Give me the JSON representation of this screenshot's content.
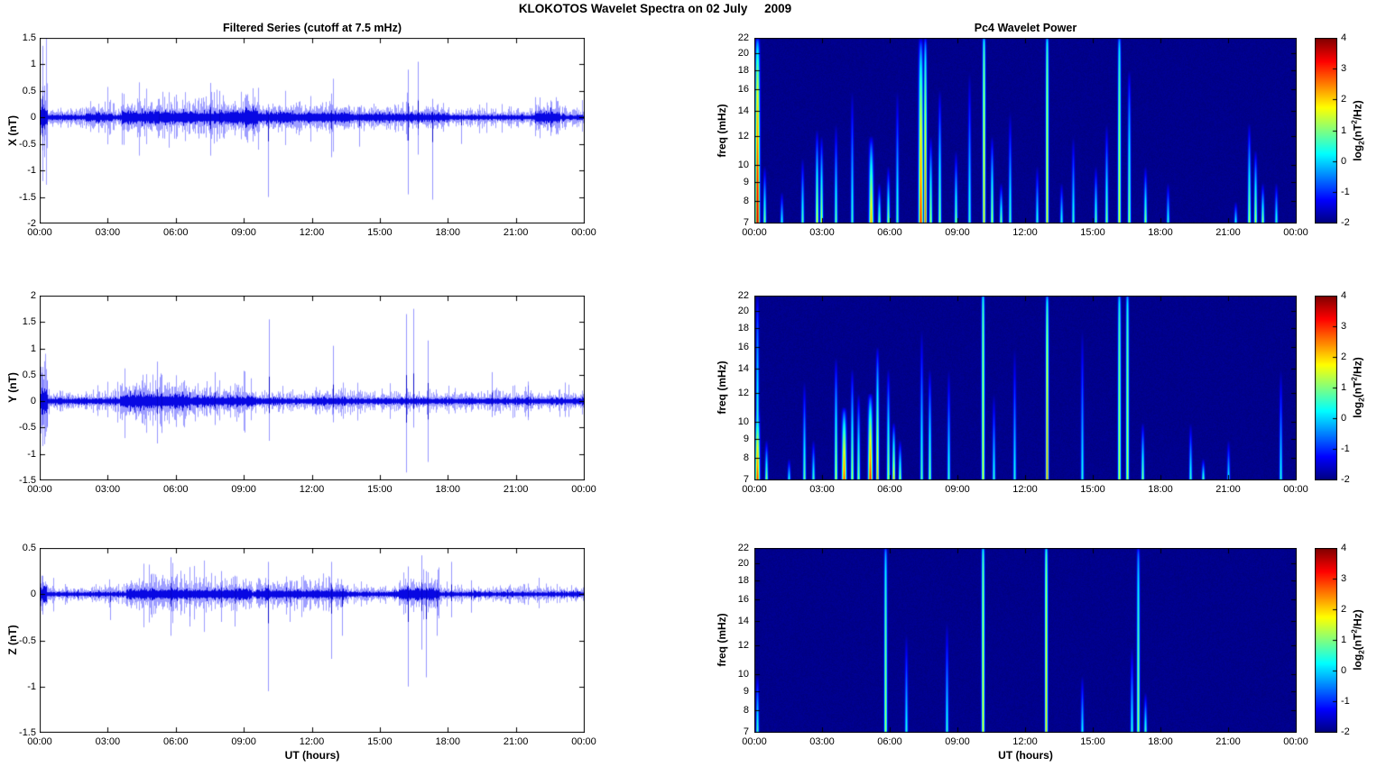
{
  "figure_title": "KLOKOTOS Wavelet Spectra on 02 July     2009",
  "left_column_title": "Filtered Series (cutoff at 7.5 mHz)",
  "right_column_title": "Pc4 Wavelet Power",
  "xlabel": "UT (hours)",
  "time_axis": {
    "tick_labels": [
      "00:00",
      "03:00",
      "06:00",
      "09:00",
      "12:00",
      "15:00",
      "18:00",
      "21:00",
      "00:00"
    ],
    "tick_hours": [
      0,
      3,
      6,
      9,
      12,
      15,
      18,
      21,
      24
    ],
    "range_hours": [
      0,
      24
    ]
  },
  "colorbar": {
    "tick_labels": [
      "4",
      "3",
      "2",
      "1",
      "0",
      "-1",
      "-2"
    ],
    "tick_values": [
      4,
      3,
      2,
      1,
      0,
      -1,
      -2
    ],
    "range": [
      -2,
      4
    ],
    "label_pre": "log",
    "label_sub": "2",
    "label_mid": "(nT",
    "label_sup": "2",
    "label_post": "/Hz)",
    "colormap": "jet",
    "top_color": "#800000",
    "bottom_color": "#000080"
  },
  "chart_data": [
    {
      "type": "line",
      "name": "X filtered series",
      "ylabel": "X (nT)",
      "line_color": "#0000EE",
      "ylim": [
        -2,
        1.5
      ],
      "ytick_values": [
        1.5,
        1,
        0.5,
        0,
        -0.5,
        -1,
        -1.5,
        -2
      ],
      "ytick_labels": [
        "1.5",
        "1",
        "0.5",
        "0",
        "-0.5",
        "-1",
        "-1.5",
        "-2"
      ],
      "noise_sigma": 0.035,
      "seed": 101,
      "bursts_format": "[t0_h, t1_h, extra_sigma]",
      "bursts": [
        [
          0,
          0.35,
          0.1
        ],
        [
          2.0,
          3.2,
          0.02
        ],
        [
          3.6,
          9.6,
          0.045
        ],
        [
          9.0,
          13.6,
          0.033
        ],
        [
          13.6,
          18.0,
          0.02
        ],
        [
          21.8,
          22.9,
          0.045
        ]
      ],
      "spikes_format": "[t_h, up_nT, down_nT]",
      "spikes": [
        [
          0.12,
          1.35,
          -1.2
        ],
        [
          0.18,
          0.6,
          -0.75
        ],
        [
          5.25,
          0.35,
          -0.35
        ],
        [
          7.5,
          0.65,
          -0.72
        ],
        [
          7.9,
          0.5,
          -0.4
        ],
        [
          10.05,
          0.25,
          -1.5
        ],
        [
          12.85,
          0.45,
          -0.75
        ],
        [
          14.05,
          0.2,
          -0.55
        ],
        [
          16.2,
          0.9,
          -1.45
        ],
        [
          16.65,
          1.05,
          -0.7
        ],
        [
          17.3,
          0.35,
          -1.55
        ],
        [
          18.55,
          0.15,
          -0.5
        ],
        [
          23.0,
          0.2,
          -0.2
        ]
      ]
    },
    {
      "type": "line",
      "name": "Y filtered series",
      "ylabel": "Y (nT)",
      "line_color": "#0000EE",
      "ylim": [
        -1.5,
        2
      ],
      "ytick_values": [
        2,
        1.5,
        1,
        0.5,
        0,
        -0.5,
        -1,
        -1.5
      ],
      "ytick_labels": [
        "2",
        "1.5",
        "1",
        "0.5",
        "0",
        "-0.5",
        "-1",
        "-1.5"
      ],
      "noise_sigma": 0.04,
      "seed": 202,
      "bursts": [
        [
          0,
          0.35,
          0.12
        ],
        [
          3.5,
          6.6,
          0.05
        ],
        [
          6.6,
          9.5,
          0.025
        ],
        [
          12.0,
          13.5,
          0.01
        ]
      ],
      "spikes": [
        [
          0.1,
          0.65,
          -0.85
        ],
        [
          0.3,
          0.4,
          -0.5
        ],
        [
          5.15,
          0.75,
          -0.8
        ],
        [
          5.35,
          0.5,
          -0.6
        ],
        [
          7.7,
          0.55,
          -0.45
        ],
        [
          10.1,
          1.55,
          -0.75
        ],
        [
          12.9,
          1.05,
          -0.4
        ],
        [
          16.15,
          1.65,
          -1.35
        ],
        [
          16.45,
          1.75,
          -0.5
        ],
        [
          17.1,
          1.15,
          -1.15
        ],
        [
          19.9,
          0.55,
          -0.3
        ],
        [
          21.5,
          0.3,
          -0.3
        ]
      ]
    },
    {
      "type": "line",
      "name": "Z filtered series",
      "ylabel": "Z (nT)",
      "line_color": "#0000EE",
      "ylim": [
        -1.5,
        0.5
      ],
      "ytick_values": [
        0.5,
        0,
        -0.5,
        -1,
        -1.5
      ],
      "ytick_labels": [
        "0.5",
        "0",
        "-0.5",
        "-1",
        "-1.5"
      ],
      "noise_sigma": 0.018,
      "seed": 303,
      "bursts": [
        [
          0,
          0.3,
          0.04
        ],
        [
          3.8,
          9.3,
          0.022
        ],
        [
          9.5,
          13.5,
          0.015
        ],
        [
          15.8,
          17.6,
          0.025
        ]
      ],
      "spikes": [
        [
          0.1,
          0.2,
          -0.22
        ],
        [
          3.1,
          0.08,
          -0.28
        ],
        [
          5.75,
          0.4,
          -0.45
        ],
        [
          6.6,
          0.12,
          -0.35
        ],
        [
          8.0,
          0.25,
          -0.3
        ],
        [
          8.6,
          0.2,
          -0.35
        ],
        [
          10.05,
          0.35,
          -1.05
        ],
        [
          11.0,
          0.15,
          -0.3
        ],
        [
          12.85,
          0.35,
          -0.7
        ],
        [
          13.3,
          0.1,
          -0.45
        ],
        [
          16.2,
          0.3,
          -1.0
        ],
        [
          16.8,
          0.42,
          -0.6
        ],
        [
          17.0,
          0.25,
          -0.9
        ],
        [
          17.5,
          0.12,
          -0.45
        ],
        [
          18.1,
          0.35,
          -0.25
        ],
        [
          19.0,
          0.15,
          -0.2
        ]
      ]
    },
    {
      "type": "heatmap",
      "name": "X wavelet power",
      "ylabel": "freq (mHz)",
      "freq_range_mHz": [
        7,
        22
      ],
      "freq_scale": "log",
      "ytick_values": [
        22,
        20,
        18,
        16,
        14,
        12,
        10,
        9,
        8,
        7
      ],
      "ytick_labels": [
        "22",
        "20",
        "18",
        "16",
        "14",
        "12",
        "10",
        "9",
        "8",
        "7"
      ],
      "clim": [
        -2,
        4
      ],
      "seed": 404,
      "events_format": "[t_hours, fmax_mHz, peak_log2_power, width_px, taper_exp]",
      "events": [
        [
          0.12,
          22,
          3.6,
          3,
          0.35
        ],
        [
          0.45,
          10,
          1.2,
          2,
          0.8
        ],
        [
          1.2,
          8.5,
          0.5,
          2,
          0.8
        ],
        [
          2.1,
          10.5,
          0.9,
          2,
          0.8
        ],
        [
          2.75,
          12.5,
          1.8,
          2,
          0.7
        ],
        [
          2.95,
          12,
          1.6,
          2,
          0.7
        ],
        [
          3.6,
          13,
          1.0,
          2,
          0.8
        ],
        [
          4.3,
          16,
          0.7,
          2,
          0.8
        ],
        [
          5.15,
          12,
          2.3,
          3,
          0.6
        ],
        [
          5.5,
          9,
          1.2,
          2,
          0.8
        ],
        [
          5.9,
          10,
          1.4,
          2,
          0.8
        ],
        [
          6.3,
          16,
          0.8,
          2,
          0.8
        ],
        [
          7.35,
          22,
          3.1,
          3,
          0.45
        ],
        [
          7.55,
          22,
          2.6,
          2,
          0.35
        ],
        [
          7.8,
          12,
          1.5,
          2,
          0.7
        ],
        [
          8.2,
          16,
          1.3,
          2,
          0.7
        ],
        [
          8.9,
          11,
          1.2,
          2,
          0.8
        ],
        [
          9.5,
          18,
          0.7,
          2,
          0.8
        ],
        [
          10.15,
          22,
          2.0,
          2,
          0.15
        ],
        [
          10.5,
          12,
          1.5,
          2,
          0.7
        ],
        [
          10.9,
          9,
          1.2,
          2,
          0.8
        ],
        [
          11.3,
          14,
          0.8,
          2,
          0.8
        ],
        [
          12.5,
          10,
          0.6,
          2,
          0.8
        ],
        [
          12.95,
          22,
          1.9,
          2,
          0.15
        ],
        [
          13.6,
          9,
          0.6,
          2,
          0.8
        ],
        [
          14.1,
          12,
          0.7,
          2,
          0.8
        ],
        [
          15.1,
          10,
          1.0,
          2,
          0.8
        ],
        [
          15.6,
          13,
          1.2,
          2,
          0.8
        ],
        [
          16.15,
          22,
          1.8,
          2,
          0.2
        ],
        [
          16.6,
          18,
          1.4,
          2,
          0.6
        ],
        [
          17.3,
          10,
          1.3,
          2,
          0.8
        ],
        [
          18.3,
          9,
          0.6,
          2,
          0.8
        ],
        [
          21.3,
          8,
          0.5,
          2,
          0.8
        ],
        [
          21.9,
          13,
          1.5,
          2,
          0.7
        ],
        [
          22.2,
          11,
          1.6,
          2,
          0.7
        ],
        [
          22.5,
          9,
          1.4,
          2,
          0.8
        ],
        [
          23.1,
          9,
          0.7,
          2,
          0.8
        ]
      ]
    },
    {
      "type": "heatmap",
      "name": "Y wavelet power",
      "ylabel": "freq (mHz)",
      "freq_range_mHz": [
        7,
        22
      ],
      "freq_scale": "log",
      "ytick_values": [
        22,
        20,
        18,
        16,
        14,
        12,
        10,
        9,
        8,
        7
      ],
      "ytick_labels": [
        "22",
        "20",
        "18",
        "16",
        "14",
        "12",
        "10",
        "9",
        "8",
        "7"
      ],
      "clim": [
        -2,
        4
      ],
      "seed": 505,
      "events": [
        [
          0.1,
          11,
          3.0,
          3,
          0.5
        ],
        [
          0.1,
          22,
          1.2,
          2,
          0.5
        ],
        [
          0.5,
          9,
          1.3,
          2,
          0.8
        ],
        [
          1.5,
          8,
          0.5,
          2,
          0.8
        ],
        [
          2.2,
          13,
          1.0,
          2,
          0.8
        ],
        [
          2.6,
          9,
          0.8,
          2,
          0.8
        ],
        [
          3.6,
          15,
          1.6,
          2,
          0.7
        ],
        [
          3.95,
          11,
          2.9,
          3,
          0.55
        ],
        [
          4.3,
          14,
          1.5,
          2,
          0.7
        ],
        [
          4.6,
          12,
          1.3,
          2,
          0.7
        ],
        [
          5.1,
          12,
          3.2,
          3,
          0.55
        ],
        [
          5.45,
          16,
          2.2,
          2,
          0.6
        ],
        [
          5.9,
          14,
          1.5,
          2,
          0.7
        ],
        [
          6.15,
          10,
          2.1,
          2,
          0.65
        ],
        [
          6.45,
          9,
          1.4,
          2,
          0.8
        ],
        [
          7.4,
          18,
          0.9,
          2,
          0.8
        ],
        [
          7.75,
          14,
          1.2,
          2,
          0.7
        ],
        [
          8.6,
          14,
          0.7,
          2,
          0.8
        ],
        [
          10.1,
          22,
          1.7,
          2,
          0.12
        ],
        [
          10.6,
          12,
          0.6,
          2,
          0.8
        ],
        [
          11.5,
          16,
          0.5,
          2,
          0.8
        ],
        [
          12.95,
          22,
          2.4,
          2,
          0.2
        ],
        [
          14.5,
          18,
          0.5,
          2,
          0.8
        ],
        [
          16.15,
          22,
          1.6,
          2,
          0.15
        ],
        [
          16.5,
          22,
          1.5,
          2,
          0.15
        ],
        [
          17.2,
          10,
          1.2,
          2,
          0.7
        ],
        [
          19.3,
          10,
          0.7,
          2,
          0.8
        ],
        [
          19.9,
          8,
          0.9,
          2,
          0.8
        ],
        [
          21.0,
          9,
          0.4,
          2,
          0.8
        ],
        [
          23.3,
          14,
          0.5,
          2,
          0.8
        ]
      ]
    },
    {
      "type": "heatmap",
      "name": "Z wavelet power",
      "ylabel": "freq (mHz)",
      "freq_range_mHz": [
        7,
        22
      ],
      "freq_scale": "log",
      "ytick_values": [
        22,
        20,
        18,
        16,
        14,
        12,
        10,
        9,
        8,
        7
      ],
      "ytick_labels": [
        "22",
        "20",
        "18",
        "16",
        "14",
        "12",
        "10",
        "9",
        "8",
        "7"
      ],
      "clim": [
        -2,
        4
      ],
      "seed": 606,
      "events": [
        [
          0.1,
          10,
          0.8,
          2,
          0.7
        ],
        [
          5.8,
          22,
          1.4,
          2,
          0.2
        ],
        [
          6.7,
          13,
          0.5,
          2,
          0.8
        ],
        [
          8.5,
          14,
          0.6,
          2,
          0.8
        ],
        [
          10.1,
          22,
          1.8,
          2,
          0.12
        ],
        [
          12.9,
          22,
          2.0,
          2,
          0.12
        ],
        [
          14.5,
          10,
          0.4,
          2,
          0.8
        ],
        [
          16.7,
          12,
          0.6,
          2,
          0.8
        ],
        [
          17.0,
          22,
          1.3,
          2,
          0.25
        ],
        [
          17.3,
          9,
          0.8,
          2,
          0.8
        ]
      ]
    }
  ]
}
